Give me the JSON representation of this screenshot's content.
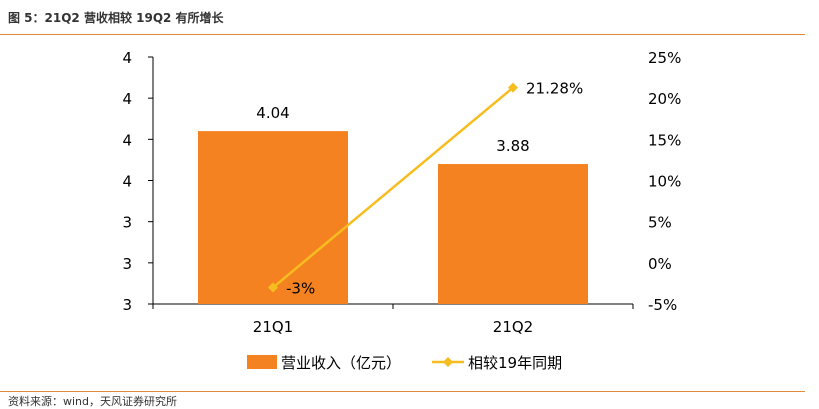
{
  "caption": "图 5：21Q2 营收相较 19Q2 有所增长",
  "source": "资料来源：wind，天风证券研究所",
  "colors": {
    "bar": "#f58220",
    "line": "#f5bd1f",
    "rule": "#e08a3c"
  },
  "chart_data": {
    "type": "bar",
    "categories": [
      "21Q1",
      "21Q2"
    ],
    "series": [
      {
        "name": "营业收入（亿元）",
        "type": "bar",
        "axis": "left",
        "values": [
          4.04,
          3.88
        ],
        "labels": [
          "4.04",
          "3.88"
        ]
      },
      {
        "name": "相较19年同期",
        "type": "line",
        "axis": "right",
        "values": [
          -3,
          21.28
        ],
        "labels": [
          "-3%",
          "21.28%"
        ]
      }
    ],
    "y_left": {
      "ylim": [
        3.2,
        4.4
      ],
      "tick_values": [
        3.2,
        3.4,
        3.6,
        3.8,
        4.0,
        4.2,
        4.4
      ],
      "tick_labels": [
        "3",
        "3",
        "3",
        "4",
        "4",
        "4",
        "4"
      ]
    },
    "y_right": {
      "ylim": [
        -5,
        25
      ],
      "tick_labels": [
        "-5%",
        "0%",
        "5%",
        "10%",
        "15%",
        "20%",
        "25%"
      ]
    },
    "grid": false,
    "legend": "bottom"
  }
}
